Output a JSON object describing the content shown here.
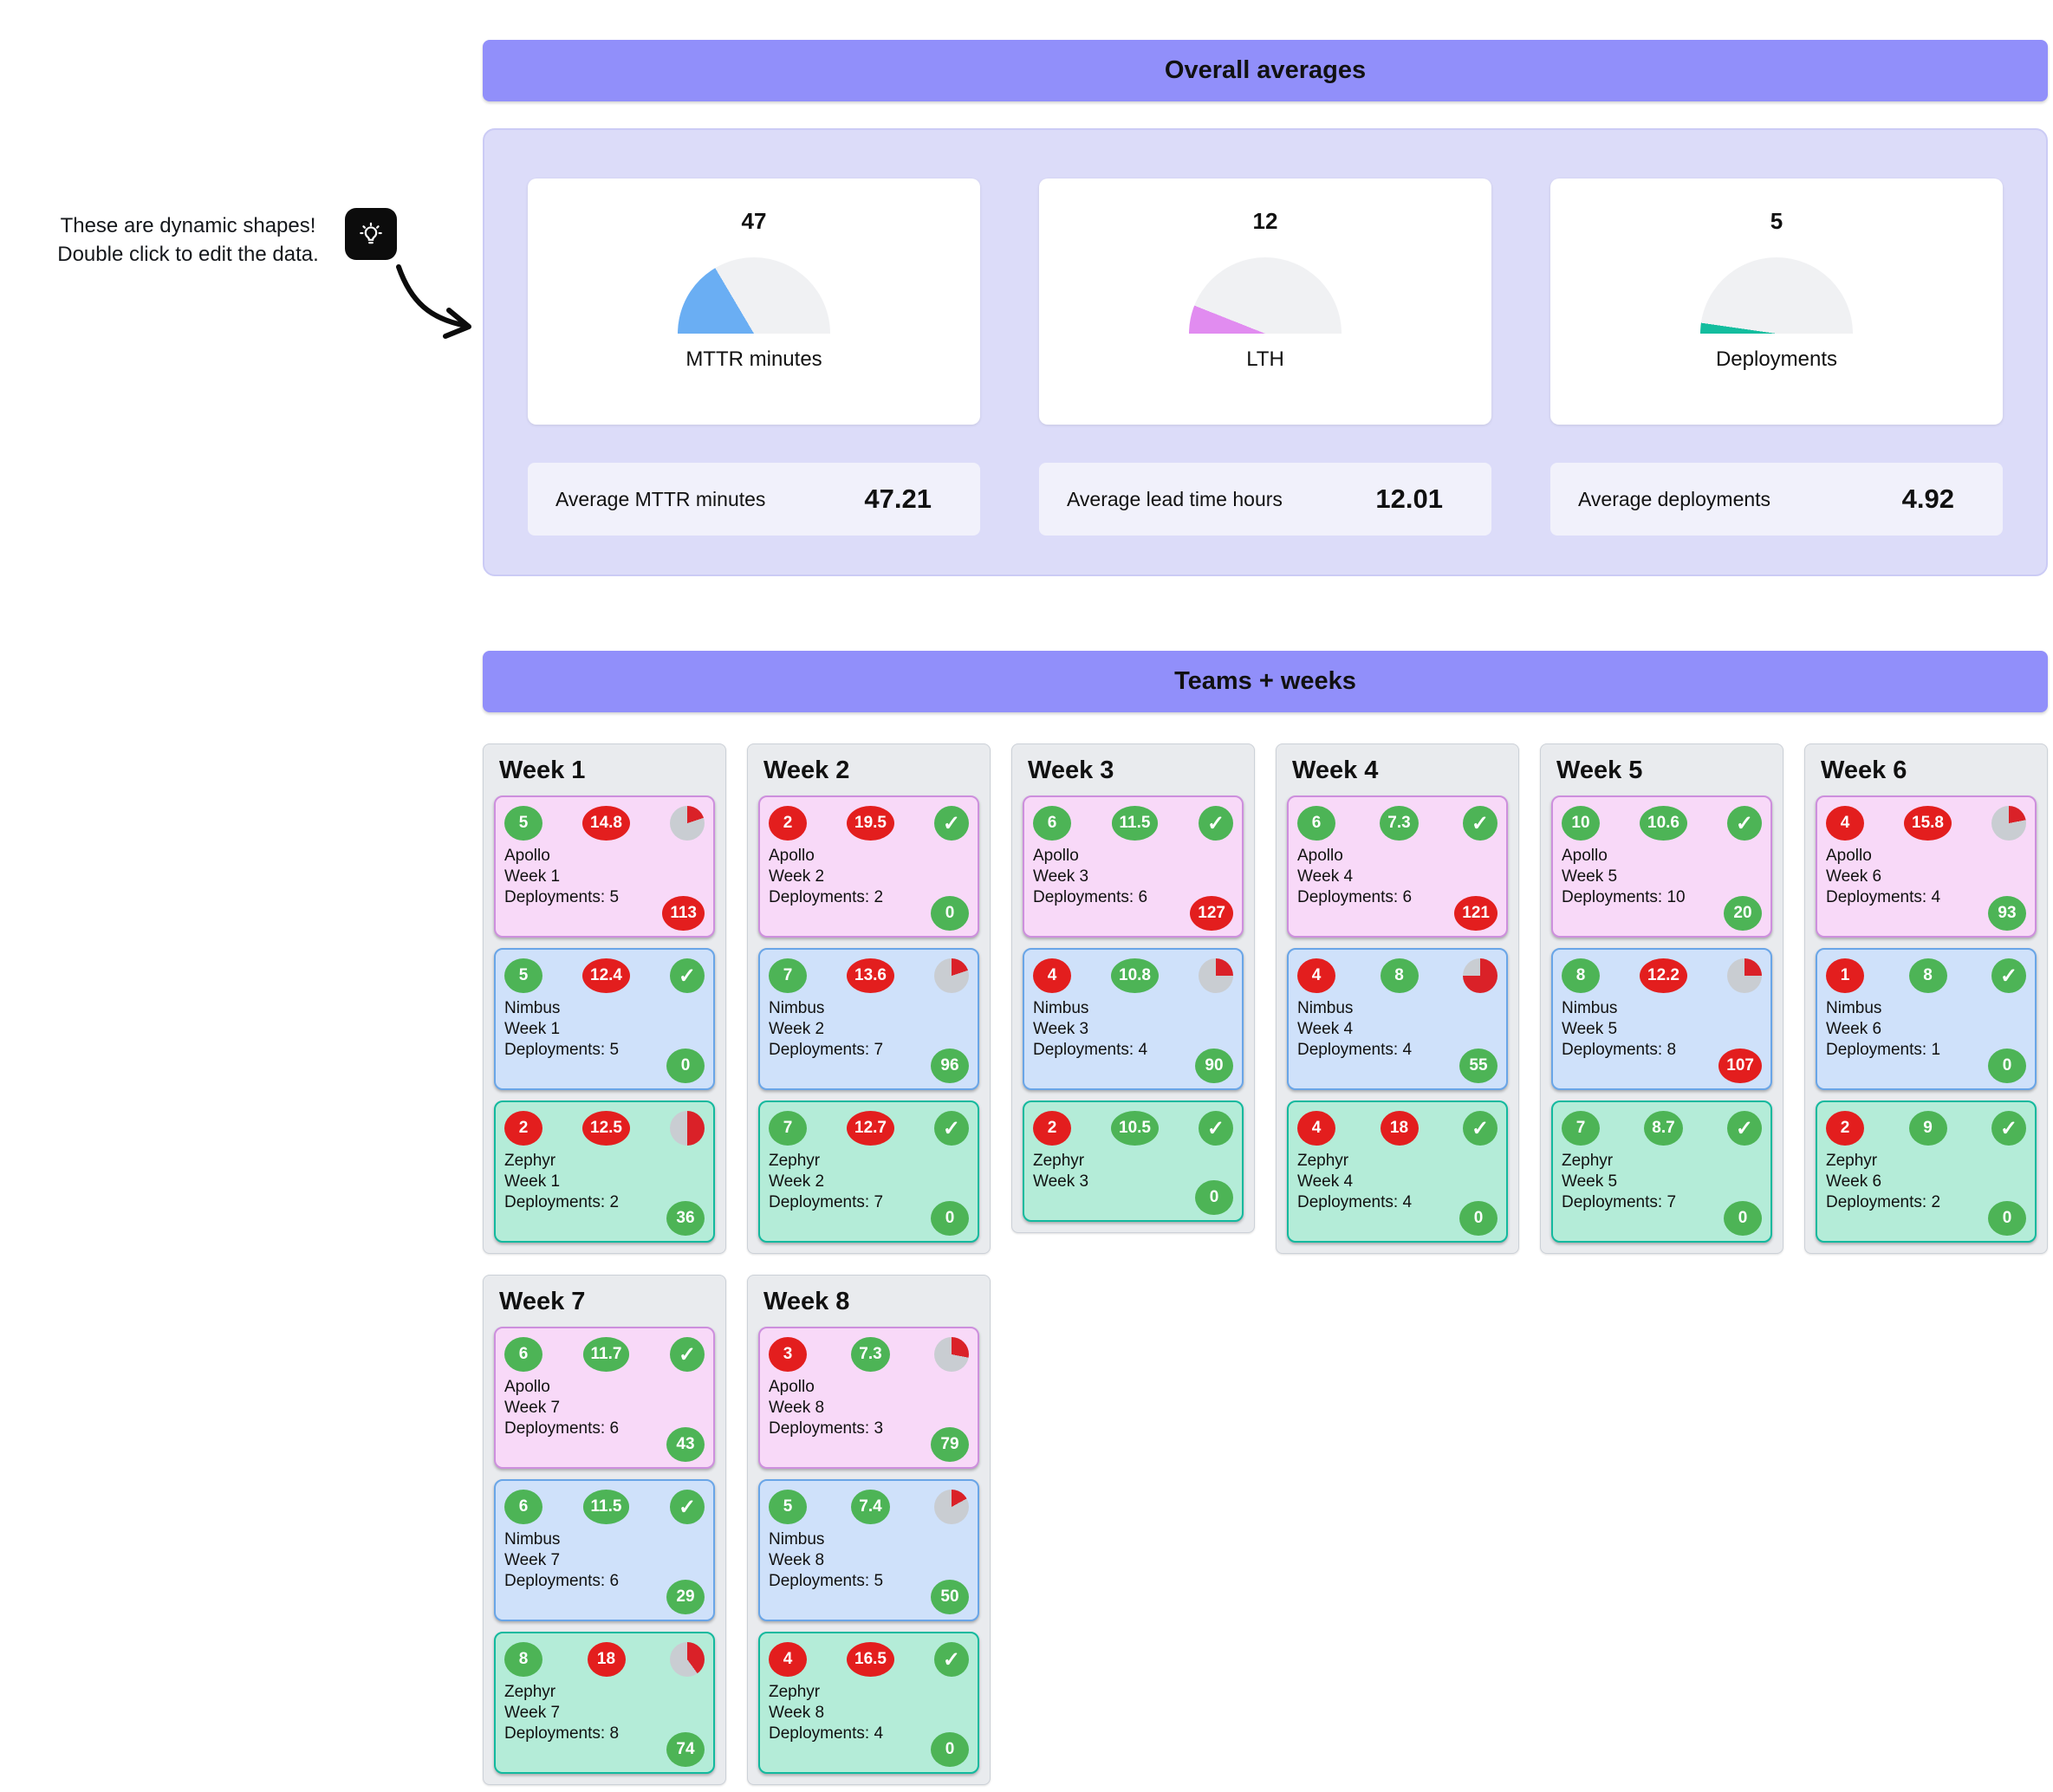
{
  "annotation": {
    "line1": "These are dynamic shapes!",
    "line2": "Double click to edit the data.",
    "icon": "lightbulb-icon"
  },
  "sections": {
    "overall": {
      "title": "Overall averages"
    },
    "teams": {
      "title": "Teams + weeks"
    }
  },
  "colors": {
    "header_purple": "#918ffa",
    "panel_lavender": "#dcdcf9",
    "panel_border": "#cbcbf5",
    "stat_bg": "#f1f1fb",
    "gauge_track": "#f0f1f3",
    "badge_green": "#4db456",
    "badge_red": "#e31e1e",
    "pie_red": "#da2128",
    "pie_gray": "#c9cdd2",
    "apollo_bg": "#f8d9f8",
    "apollo_border": "#cd8fdd",
    "nimbus_bg": "#cfe1fa",
    "nimbus_border": "#69a5e7",
    "zephyr_bg": "#b4ecd8",
    "zephyr_border": "#13b99e"
  },
  "chart_data": [
    {
      "type": "gauge",
      "title": "MTTR minutes",
      "value": 47,
      "fill_percent": 33,
      "fill_color": "#6aaef3"
    },
    {
      "type": "gauge",
      "title": "LTH",
      "value": 12,
      "fill_percent": 12,
      "fill_color": "#e18cf0"
    },
    {
      "type": "gauge",
      "title": "Deployments",
      "value": 5,
      "fill_percent": 4.5,
      "fill_color": "#13bd9e"
    }
  ],
  "stats": [
    {
      "label": "Average MTTR minutes",
      "value": "47.21"
    },
    {
      "label": "Average lead time hours",
      "value": "12.01"
    },
    {
      "label": "Average deployments",
      "value": "4.92"
    }
  ],
  "weeks": [
    {
      "title": "Week 1",
      "teams": [
        {
          "variant": "apollo",
          "name": "Apollo",
          "week_label": "Week 1",
          "deployments_label": "Deployments: 5",
          "left_badge": {
            "text": "5",
            "color": "green"
          },
          "mid_badge": {
            "text": "14.8",
            "color": "red"
          },
          "status": {
            "type": "pie",
            "percent": 20
          },
          "bottom_badge": {
            "text": "113",
            "color": "red"
          }
        },
        {
          "variant": "nimbus",
          "name": "Nimbus",
          "week_label": "Week 1",
          "deployments_label": "Deployments: 5",
          "left_badge": {
            "text": "5",
            "color": "green"
          },
          "mid_badge": {
            "text": "12.4",
            "color": "red"
          },
          "status": {
            "type": "check"
          },
          "bottom_badge": {
            "text": "0",
            "color": "green"
          }
        },
        {
          "variant": "zephyr",
          "name": "Zephyr",
          "week_label": "Week 1",
          "deployments_label": "Deployments: 2",
          "left_badge": {
            "text": "2",
            "color": "red"
          },
          "mid_badge": {
            "text": "12.5",
            "color": "red"
          },
          "status": {
            "type": "pie",
            "percent": 50
          },
          "bottom_badge": {
            "text": "36",
            "color": "green"
          }
        }
      ]
    },
    {
      "title": "Week 2",
      "teams": [
        {
          "variant": "apollo",
          "name": "Apollo",
          "week_label": "Week 2",
          "deployments_label": "Deployments: 2",
          "left_badge": {
            "text": "2",
            "color": "red"
          },
          "mid_badge": {
            "text": "19.5",
            "color": "red"
          },
          "status": {
            "type": "check"
          },
          "bottom_badge": {
            "text": "0",
            "color": "green"
          }
        },
        {
          "variant": "nimbus",
          "name": "Nimbus",
          "week_label": "Week 2",
          "deployments_label": "Deployments: 7",
          "left_badge": {
            "text": "7",
            "color": "green"
          },
          "mid_badge": {
            "text": "13.6",
            "color": "red"
          },
          "status": {
            "type": "pie",
            "percent": 20
          },
          "bottom_badge": {
            "text": "96",
            "color": "green"
          }
        },
        {
          "variant": "zephyr",
          "name": "Zephyr",
          "week_label": "Week 2",
          "deployments_label": "Deployments: 7",
          "left_badge": {
            "text": "7",
            "color": "green"
          },
          "mid_badge": {
            "text": "12.7",
            "color": "red"
          },
          "status": {
            "type": "check"
          },
          "bottom_badge": {
            "text": "0",
            "color": "green"
          }
        }
      ]
    },
    {
      "title": "Week 3",
      "teams": [
        {
          "variant": "apollo",
          "name": "Apollo",
          "week_label": "Week 3",
          "deployments_label": "Deployments: 6",
          "left_badge": {
            "text": "6",
            "color": "green"
          },
          "mid_badge": {
            "text": "11.5",
            "color": "green"
          },
          "status": {
            "type": "check"
          },
          "bottom_badge": {
            "text": "127",
            "color": "red"
          }
        },
        {
          "variant": "nimbus",
          "name": "Nimbus",
          "week_label": "Week 3",
          "deployments_label": "Deployments: 4",
          "left_badge": {
            "text": "4",
            "color": "red"
          },
          "mid_badge": {
            "text": "10.8",
            "color": "green"
          },
          "status": {
            "type": "pie",
            "percent": 25
          },
          "bottom_badge": {
            "text": "90",
            "color": "green"
          }
        },
        {
          "variant": "zephyr",
          "name": "Zephyr",
          "week_label": "Week 3",
          "deployments_label": null,
          "left_badge": {
            "text": "2",
            "color": "red"
          },
          "mid_badge": {
            "text": "10.5",
            "color": "green"
          },
          "status": {
            "type": "check"
          },
          "bottom_badge": {
            "text": "0",
            "color": "green"
          }
        }
      ]
    },
    {
      "title": "Week 4",
      "teams": [
        {
          "variant": "apollo",
          "name": "Apollo",
          "week_label": "Week 4",
          "deployments_label": "Deployments: 6",
          "left_badge": {
            "text": "6",
            "color": "green"
          },
          "mid_badge": {
            "text": "7.3",
            "color": "green"
          },
          "status": {
            "type": "check"
          },
          "bottom_badge": {
            "text": "121",
            "color": "red"
          }
        },
        {
          "variant": "nimbus",
          "name": "Nimbus",
          "week_label": "Week 4",
          "deployments_label": "Deployments: 4",
          "left_badge": {
            "text": "4",
            "color": "red"
          },
          "mid_badge": {
            "text": "8",
            "color": "green"
          },
          "status": {
            "type": "pie",
            "percent": 75
          },
          "bottom_badge": {
            "text": "55",
            "color": "green"
          }
        },
        {
          "variant": "zephyr",
          "name": "Zephyr",
          "week_label": "Week 4",
          "deployments_label": "Deployments: 4",
          "left_badge": {
            "text": "4",
            "color": "red"
          },
          "mid_badge": {
            "text": "18",
            "color": "red"
          },
          "status": {
            "type": "check"
          },
          "bottom_badge": {
            "text": "0",
            "color": "green"
          }
        }
      ]
    },
    {
      "title": "Week 5",
      "teams": [
        {
          "variant": "apollo",
          "name": "Apollo",
          "week_label": "Week 5",
          "deployments_label": "Deployments: 10",
          "left_badge": {
            "text": "10",
            "color": "green"
          },
          "mid_badge": {
            "text": "10.6",
            "color": "green"
          },
          "status": {
            "type": "check"
          },
          "bottom_badge": {
            "text": "20",
            "color": "green"
          }
        },
        {
          "variant": "nimbus",
          "name": "Nimbus",
          "week_label": "Week 5",
          "deployments_label": "Deployments: 8",
          "left_badge": {
            "text": "8",
            "color": "green"
          },
          "mid_badge": {
            "text": "12.2",
            "color": "red"
          },
          "status": {
            "type": "pie",
            "percent": 25
          },
          "bottom_badge": {
            "text": "107",
            "color": "red"
          }
        },
        {
          "variant": "zephyr",
          "name": "Zephyr",
          "week_label": "Week 5",
          "deployments_label": "Deployments: 7",
          "left_badge": {
            "text": "7",
            "color": "green"
          },
          "mid_badge": {
            "text": "8.7",
            "color": "green"
          },
          "status": {
            "type": "check"
          },
          "bottom_badge": {
            "text": "0",
            "color": "green"
          }
        }
      ]
    },
    {
      "title": "Week 6",
      "teams": [
        {
          "variant": "apollo",
          "name": "Apollo",
          "week_label": "Week 6",
          "deployments_label": "Deployments: 4",
          "left_badge": {
            "text": "4",
            "color": "red"
          },
          "mid_badge": {
            "text": "15.8",
            "color": "red"
          },
          "status": {
            "type": "pie",
            "percent": 22
          },
          "bottom_badge": {
            "text": "93",
            "color": "green"
          }
        },
        {
          "variant": "nimbus",
          "name": "Nimbus",
          "week_label": "Week 6",
          "deployments_label": "Deployments: 1",
          "left_badge": {
            "text": "1",
            "color": "red"
          },
          "mid_badge": {
            "text": "8",
            "color": "green"
          },
          "status": {
            "type": "check"
          },
          "bottom_badge": {
            "text": "0",
            "color": "green"
          }
        },
        {
          "variant": "zephyr",
          "name": "Zephyr",
          "week_label": "Week 6",
          "deployments_label": "Deployments: 2",
          "left_badge": {
            "text": "2",
            "color": "red"
          },
          "mid_badge": {
            "text": "9",
            "color": "green"
          },
          "status": {
            "type": "check"
          },
          "bottom_badge": {
            "text": "0",
            "color": "green"
          }
        }
      ]
    },
    {
      "title": "Week 7",
      "teams": [
        {
          "variant": "apollo",
          "name": "Apollo",
          "week_label": "Week 7",
          "deployments_label": "Deployments: 6",
          "left_badge": {
            "text": "6",
            "color": "green"
          },
          "mid_badge": {
            "text": "11.7",
            "color": "green"
          },
          "status": {
            "type": "check"
          },
          "bottom_badge": {
            "text": "43",
            "color": "green"
          }
        },
        {
          "variant": "nimbus",
          "name": "Nimbus",
          "week_label": "Week 7",
          "deployments_label": "Deployments: 6",
          "left_badge": {
            "text": "6",
            "color": "green"
          },
          "mid_badge": {
            "text": "11.5",
            "color": "green"
          },
          "status": {
            "type": "check"
          },
          "bottom_badge": {
            "text": "29",
            "color": "green"
          }
        },
        {
          "variant": "zephyr",
          "name": "Zephyr",
          "week_label": "Week 7",
          "deployments_label": "Deployments: 8",
          "left_badge": {
            "text": "8",
            "color": "green"
          },
          "mid_badge": {
            "text": "18",
            "color": "red"
          },
          "status": {
            "type": "pie",
            "percent": 40
          },
          "bottom_badge": {
            "text": "74",
            "color": "green"
          }
        }
      ]
    },
    {
      "title": "Week 8",
      "teams": [
        {
          "variant": "apollo",
          "name": "Apollo",
          "week_label": "Week 8",
          "deployments_label": "Deployments: 3",
          "left_badge": {
            "text": "3",
            "color": "red"
          },
          "mid_badge": {
            "text": "7.3",
            "color": "green"
          },
          "status": {
            "type": "pie",
            "percent": 28
          },
          "bottom_badge": {
            "text": "79",
            "color": "green"
          }
        },
        {
          "variant": "nimbus",
          "name": "Nimbus",
          "week_label": "Week 8",
          "deployments_label": "Deployments: 5",
          "left_badge": {
            "text": "5",
            "color": "green"
          },
          "mid_badge": {
            "text": "7.4",
            "color": "green"
          },
          "status": {
            "type": "pie",
            "percent": 17
          },
          "bottom_badge": {
            "text": "50",
            "color": "green"
          }
        },
        {
          "variant": "zephyr",
          "name": "Zephyr",
          "week_label": "Week 8",
          "deployments_label": "Deployments: 4",
          "left_badge": {
            "text": "4",
            "color": "red"
          },
          "mid_badge": {
            "text": "16.5",
            "color": "red"
          },
          "status": {
            "type": "check"
          },
          "bottom_badge": {
            "text": "0",
            "color": "green"
          }
        }
      ]
    }
  ]
}
